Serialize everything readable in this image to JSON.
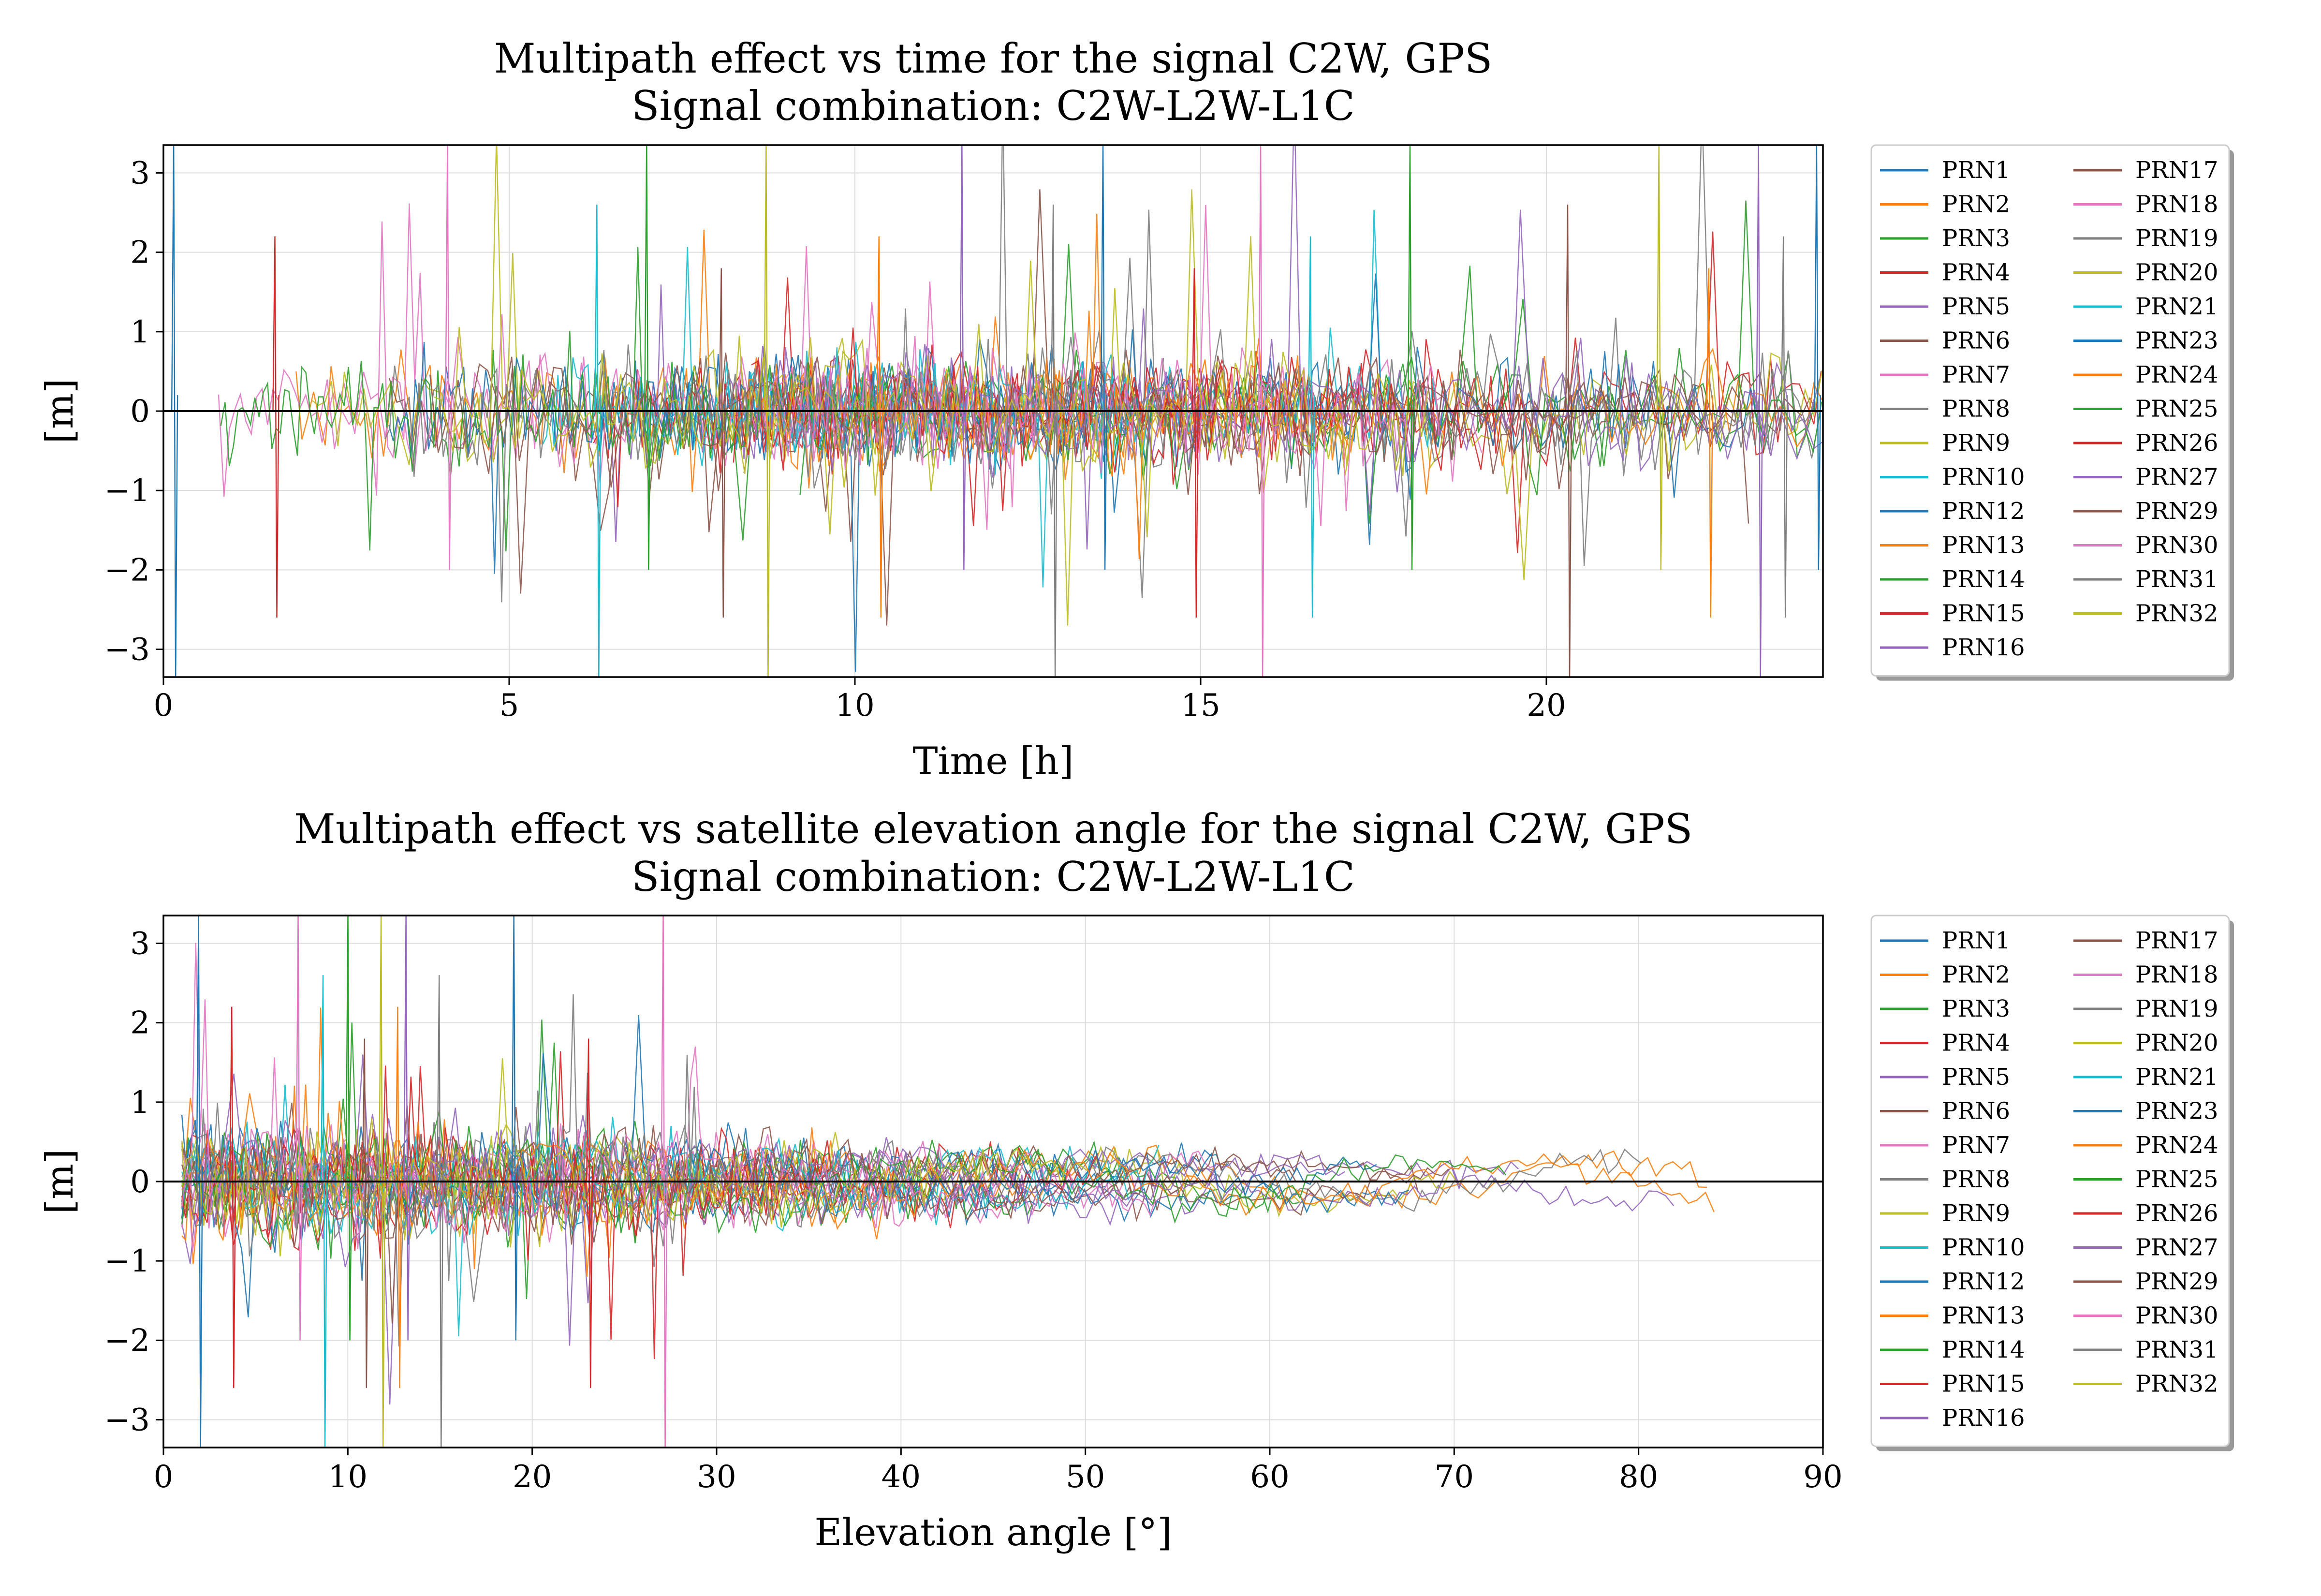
{
  "chart_data": [
    {
      "type": "line",
      "title": "Multipath effect vs time for the signal C2W, GPS",
      "subtitle": "Signal combination: C2W-L2W-L1C",
      "xlabel": "Time [h]",
      "ylabel": "[m]",
      "xlim": [
        0,
        24
      ],
      "ylim": [
        -3.35,
        3.35
      ],
      "xticks": [
        "0",
        "5",
        "10",
        "15",
        "20"
      ],
      "yticks": [
        "3",
        "2",
        "1",
        "0",
        "−1",
        "−2",
        "−3"
      ],
      "grid": true,
      "legend_position": "outside right, 2 columns",
      "reference_line": 0,
      "series": [
        {
          "name": "PRN1"
        },
        {
          "name": "PRN2"
        },
        {
          "name": "PRN3"
        },
        {
          "name": "PRN4"
        },
        {
          "name": "PRN5"
        },
        {
          "name": "PRN6"
        },
        {
          "name": "PRN7"
        },
        {
          "name": "PRN8"
        },
        {
          "name": "PRN9"
        },
        {
          "name": "PRN10"
        },
        {
          "name": "PRN12"
        },
        {
          "name": "PRN13"
        },
        {
          "name": "PRN14"
        },
        {
          "name": "PRN15"
        },
        {
          "name": "PRN16"
        },
        {
          "name": "PRN17"
        },
        {
          "name": "PRN18"
        },
        {
          "name": "PRN19"
        },
        {
          "name": "PRN20"
        },
        {
          "name": "PRN21"
        },
        {
          "name": "PRN23"
        },
        {
          "name": "PRN24"
        },
        {
          "name": "PRN25"
        },
        {
          "name": "PRN26"
        },
        {
          "name": "PRN27"
        },
        {
          "name": "PRN29"
        },
        {
          "name": "PRN30"
        },
        {
          "name": "PRN31"
        },
        {
          "name": "PRN32"
        }
      ]
    },
    {
      "type": "line",
      "title": "Multipath effect vs satellite elevation angle for the signal C2W, GPS",
      "subtitle": "Signal combination: C2W-L2W-L1C",
      "xlabel": "Elevation angle [°]",
      "ylabel": "[m]",
      "xlim": [
        0,
        90
      ],
      "ylim": [
        -3.35,
        3.35
      ],
      "xticks": [
        "0",
        "10",
        "20",
        "30",
        "40",
        "50",
        "60",
        "70",
        "80",
        "90"
      ],
      "yticks": [
        "3",
        "2",
        "1",
        "0",
        "−1",
        "−2",
        "−3"
      ],
      "grid": true,
      "legend_position": "outside right, 2 columns",
      "reference_line": 0,
      "series": [
        {
          "name": "PRN1"
        },
        {
          "name": "PRN2"
        },
        {
          "name": "PRN3"
        },
        {
          "name": "PRN4"
        },
        {
          "name": "PRN5"
        },
        {
          "name": "PRN6"
        },
        {
          "name": "PRN7"
        },
        {
          "name": "PRN8"
        },
        {
          "name": "PRN9"
        },
        {
          "name": "PRN10"
        },
        {
          "name": "PRN12"
        },
        {
          "name": "PRN13"
        },
        {
          "name": "PRN14"
        },
        {
          "name": "PRN15"
        },
        {
          "name": "PRN16"
        },
        {
          "name": "PRN17"
        },
        {
          "name": "PRN18"
        },
        {
          "name": "PRN19"
        },
        {
          "name": "PRN20"
        },
        {
          "name": "PRN21"
        },
        {
          "name": "PRN23"
        },
        {
          "name": "PRN24"
        },
        {
          "name": "PRN25"
        },
        {
          "name": "PRN26"
        },
        {
          "name": "PRN27"
        },
        {
          "name": "PRN29"
        },
        {
          "name": "PRN30"
        },
        {
          "name": "PRN31"
        },
        {
          "name": "PRN32"
        }
      ]
    }
  ],
  "palette": [
    "#1f77b4",
    "#ff7f0e",
    "#2ca02c",
    "#d62728",
    "#9467bd",
    "#8c564b",
    "#e377c2",
    "#7f7f7f",
    "#bcbd22",
    "#17becf"
  ]
}
